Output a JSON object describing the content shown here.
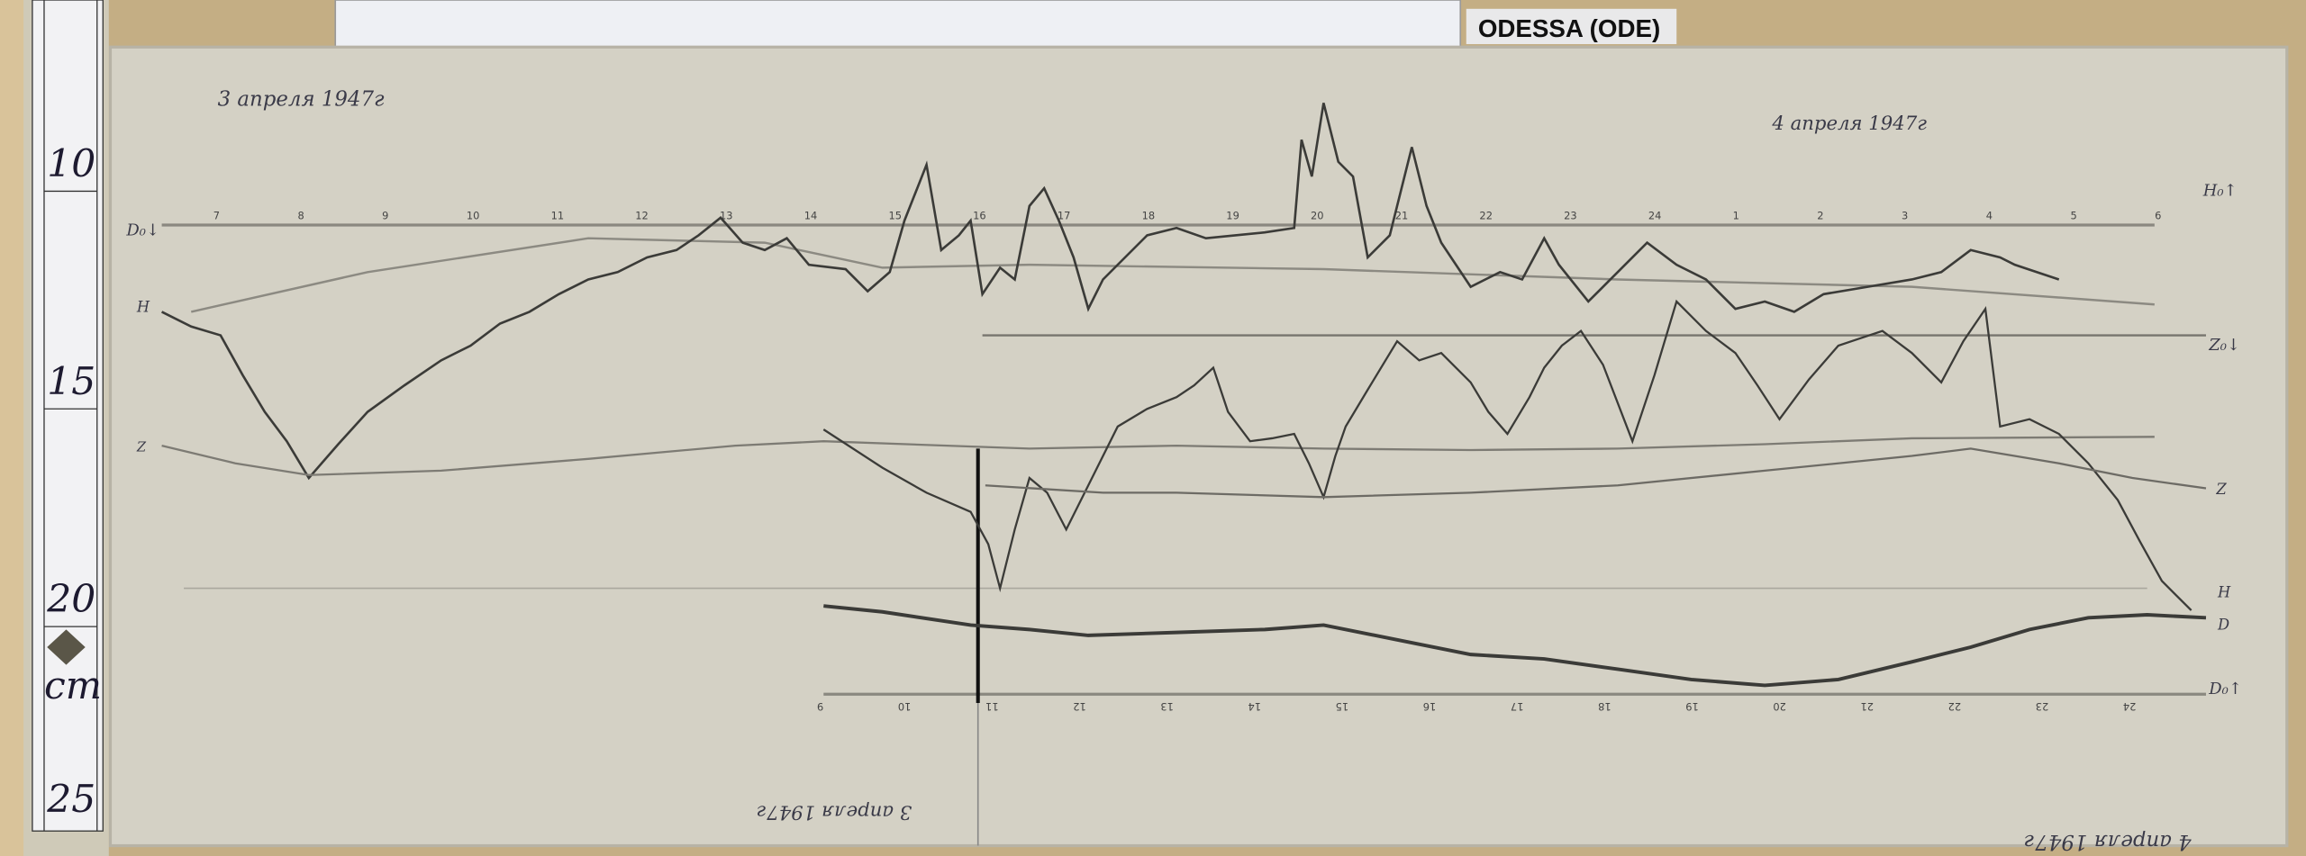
{
  "station_label": "ODESSA (ODE)",
  "ruler": {
    "marks": [
      "10",
      "15",
      "20",
      "25"
    ],
    "unit": "cm"
  },
  "magnetogram": {
    "date_day1": "3 апреля 1947г",
    "date_day2": "4 апреля 1947г",
    "bottom_date_day1": "3 апреля 1947г",
    "bottom_date_day2": "4 апреля 1947г",
    "trace_labels": {
      "d_top": "D₀↓",
      "h_left": "H",
      "z_left": "Z",
      "h_right_top": "H₀↑",
      "z_right": "Z₀↓",
      "z_right2": "Z",
      "h_right": "H",
      "d_right": "D",
      "d_bottom_right": "D₀↑"
    },
    "hour_labels_top": [
      "7",
      "8",
      "9",
      "10",
      "11",
      "12",
      "13",
      "14",
      "15",
      "16",
      "17",
      "18",
      "19",
      "20",
      "21",
      "22",
      "23",
      "24",
      "1",
      "2",
      "3",
      "4",
      "5",
      "6"
    ],
    "hour_labels_bottom": [
      "9",
      "10",
      "11",
      "12",
      "13",
      "14",
      "15",
      "16",
      "17",
      "18",
      "19",
      "20",
      "21",
      "22",
      "23",
      "24"
    ]
  },
  "colors": {
    "paper": "#d4d1c5",
    "trace": "#3b3b38",
    "ruler": "#f2f2f4"
  }
}
